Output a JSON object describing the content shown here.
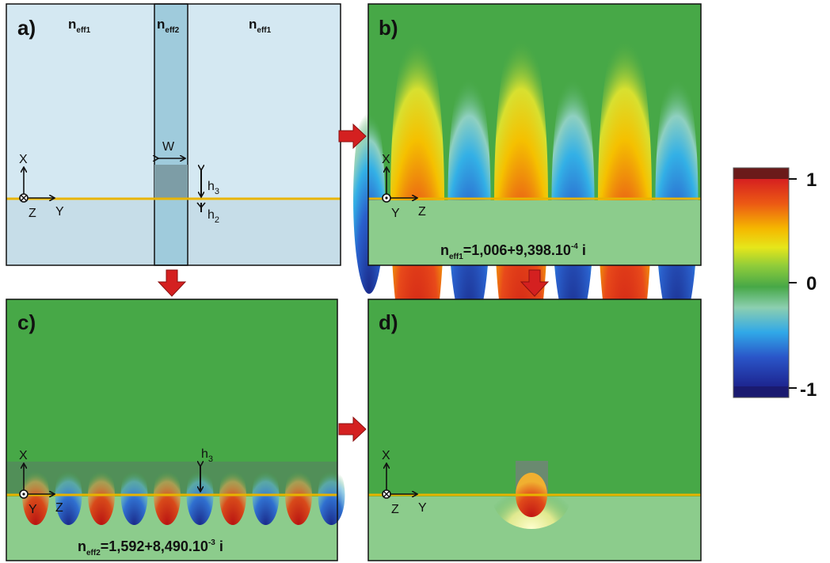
{
  "panels": {
    "a": {
      "label": "a)",
      "regions": [
        {
          "base": "n",
          "sub": "eff1"
        },
        {
          "base": "n",
          "sub": "eff2"
        },
        {
          "base": "n",
          "sub": "eff1"
        }
      ],
      "width_label": "W",
      "h3_base": "h",
      "h3_sub": "3",
      "h2_base": "h",
      "h2_sub": "2",
      "axes": {
        "up": "X",
        "out": "Z",
        "right": "Y"
      }
    },
    "b": {
      "label": "b)",
      "axes": {
        "up": "X",
        "out": "Y",
        "right": "Z"
      },
      "neff_base": "n",
      "neff_sub": "eff1",
      "neff_value": "=1,006+9,398.10",
      "neff_exp": "-4",
      "neff_tail": " i"
    },
    "c": {
      "label": "c)",
      "axes": {
        "up": "X",
        "out": "Y",
        "right": "Z"
      },
      "h3_base": "h",
      "h3_sub": "3",
      "neff_base": "n",
      "neff_sub": "eff2",
      "neff_value": "=1,592+8,490.10",
      "neff_exp": "-3",
      "neff_tail": " i"
    },
    "d": {
      "label": "d)",
      "axes": {
        "up": "X",
        "out": "Z",
        "right": "Y"
      }
    }
  },
  "colorbar": {
    "max_label": "1",
    "mid_label": "0",
    "min_label": "-1",
    "colors": {
      "top": "#6b1a1a",
      "high": "#e02020",
      "mid": "#3aaa3a",
      "low": "#2a4db8",
      "bottom": "#1a1a70"
    }
  },
  "colors": {
    "metal_line": "#e8b400",
    "arrow": "#d42020",
    "field_bg": "#47a847",
    "substrate": "#8ccc8c",
    "panel_a_bg": "#d4e8f2"
  }
}
